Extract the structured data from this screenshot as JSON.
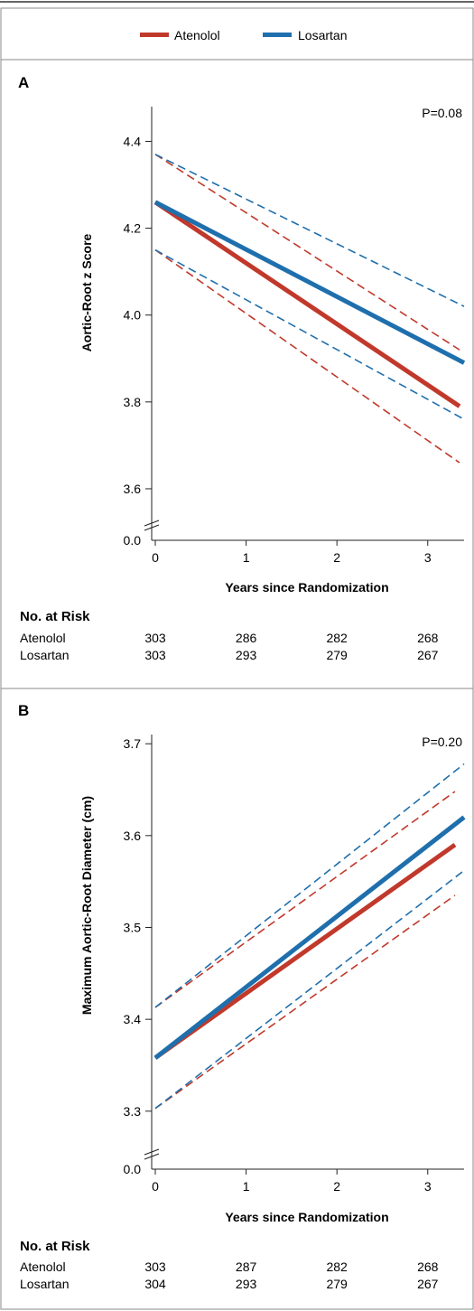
{
  "colors": {
    "atenolol": "#c0392b",
    "losartan": "#1f6fad",
    "frame": "#8a8a8a",
    "axis": "#222222"
  },
  "legend": {
    "items": [
      {
        "name": "Atenolol",
        "color": "#c0392b"
      },
      {
        "name": "Losartan",
        "color": "#1f6fad"
      }
    ]
  },
  "chart_data": [
    {
      "panel_label": "A",
      "type": "line",
      "ylabel": "Aortic-Root z Score",
      "xlabel": "Years since Randomization",
      "p_value": "P=0.08",
      "xlim": [
        0,
        3.4
      ],
      "ylim": [
        3.55,
        4.48
      ],
      "axis_break_label": "0.0",
      "yticks": [
        3.6,
        3.8,
        4.0,
        4.2,
        4.4
      ],
      "ytick_labels": [
        "3.6",
        "3.8",
        "4.0",
        "4.2",
        "4.4"
      ],
      "xticks": [
        0,
        1,
        2,
        3
      ],
      "xtick_labels": [
        "0",
        "1",
        "2",
        "3"
      ],
      "series": [
        {
          "name": "Atenolol",
          "color": "#c0392b",
          "x": [
            0,
            3.35
          ],
          "y": [
            4.26,
            3.79
          ],
          "lower": [
            4.15,
            3.66
          ],
          "upper": [
            4.37,
            3.92
          ]
        },
        {
          "name": "Losartan",
          "color": "#1f6fad",
          "x": [
            0,
            3.4
          ],
          "y": [
            4.26,
            3.89
          ],
          "lower": [
            4.15,
            3.76
          ],
          "upper": [
            4.37,
            4.02
          ]
        }
      ],
      "risk_table": {
        "title": "No. at Risk",
        "x": [
          0,
          1,
          2,
          3
        ],
        "rows": [
          {
            "label": "Atenolol",
            "values": [
              "303",
              "286",
              "282",
              "268"
            ]
          },
          {
            "label": "Losartan",
            "values": [
              "303",
              "293",
              "279",
              "267"
            ]
          }
        ]
      }
    },
    {
      "panel_label": "B",
      "type": "line",
      "ylabel": "Maximum Aortic-Root Diameter (cm)",
      "xlabel": "Years since Randomization",
      "p_value": "P=0.20",
      "xlim": [
        0,
        3.4
      ],
      "ylim": [
        3.29,
        3.71
      ],
      "axis_break_label": "0.0",
      "yticks": [
        3.3,
        3.4,
        3.5,
        3.6,
        3.7
      ],
      "ytick_labels": [
        "3.3",
        "3.4",
        "3.5",
        "3.6",
        "3.7"
      ],
      "xticks": [
        0,
        1,
        2,
        3
      ],
      "xtick_labels": [
        "0",
        "1",
        "2",
        "3"
      ],
      "series": [
        {
          "name": "Atenolol",
          "color": "#c0392b",
          "x": [
            0,
            3.3
          ],
          "y": [
            3.358,
            3.59
          ],
          "lower": [
            3.303,
            3.535
          ],
          "upper": [
            3.413,
            3.648
          ]
        },
        {
          "name": "Losartan",
          "color": "#1f6fad",
          "x": [
            0,
            3.4
          ],
          "y": [
            3.358,
            3.62
          ],
          "lower": [
            3.303,
            3.562
          ],
          "upper": [
            3.413,
            3.678
          ]
        }
      ],
      "risk_table": {
        "title": "No. at Risk",
        "x": [
          0,
          1,
          2,
          3
        ],
        "rows": [
          {
            "label": "Atenolol",
            "values": [
              "303",
              "287",
              "282",
              "268"
            ]
          },
          {
            "label": "Losartan",
            "values": [
              "304",
              "293",
              "279",
              "267"
            ]
          }
        ]
      }
    }
  ]
}
